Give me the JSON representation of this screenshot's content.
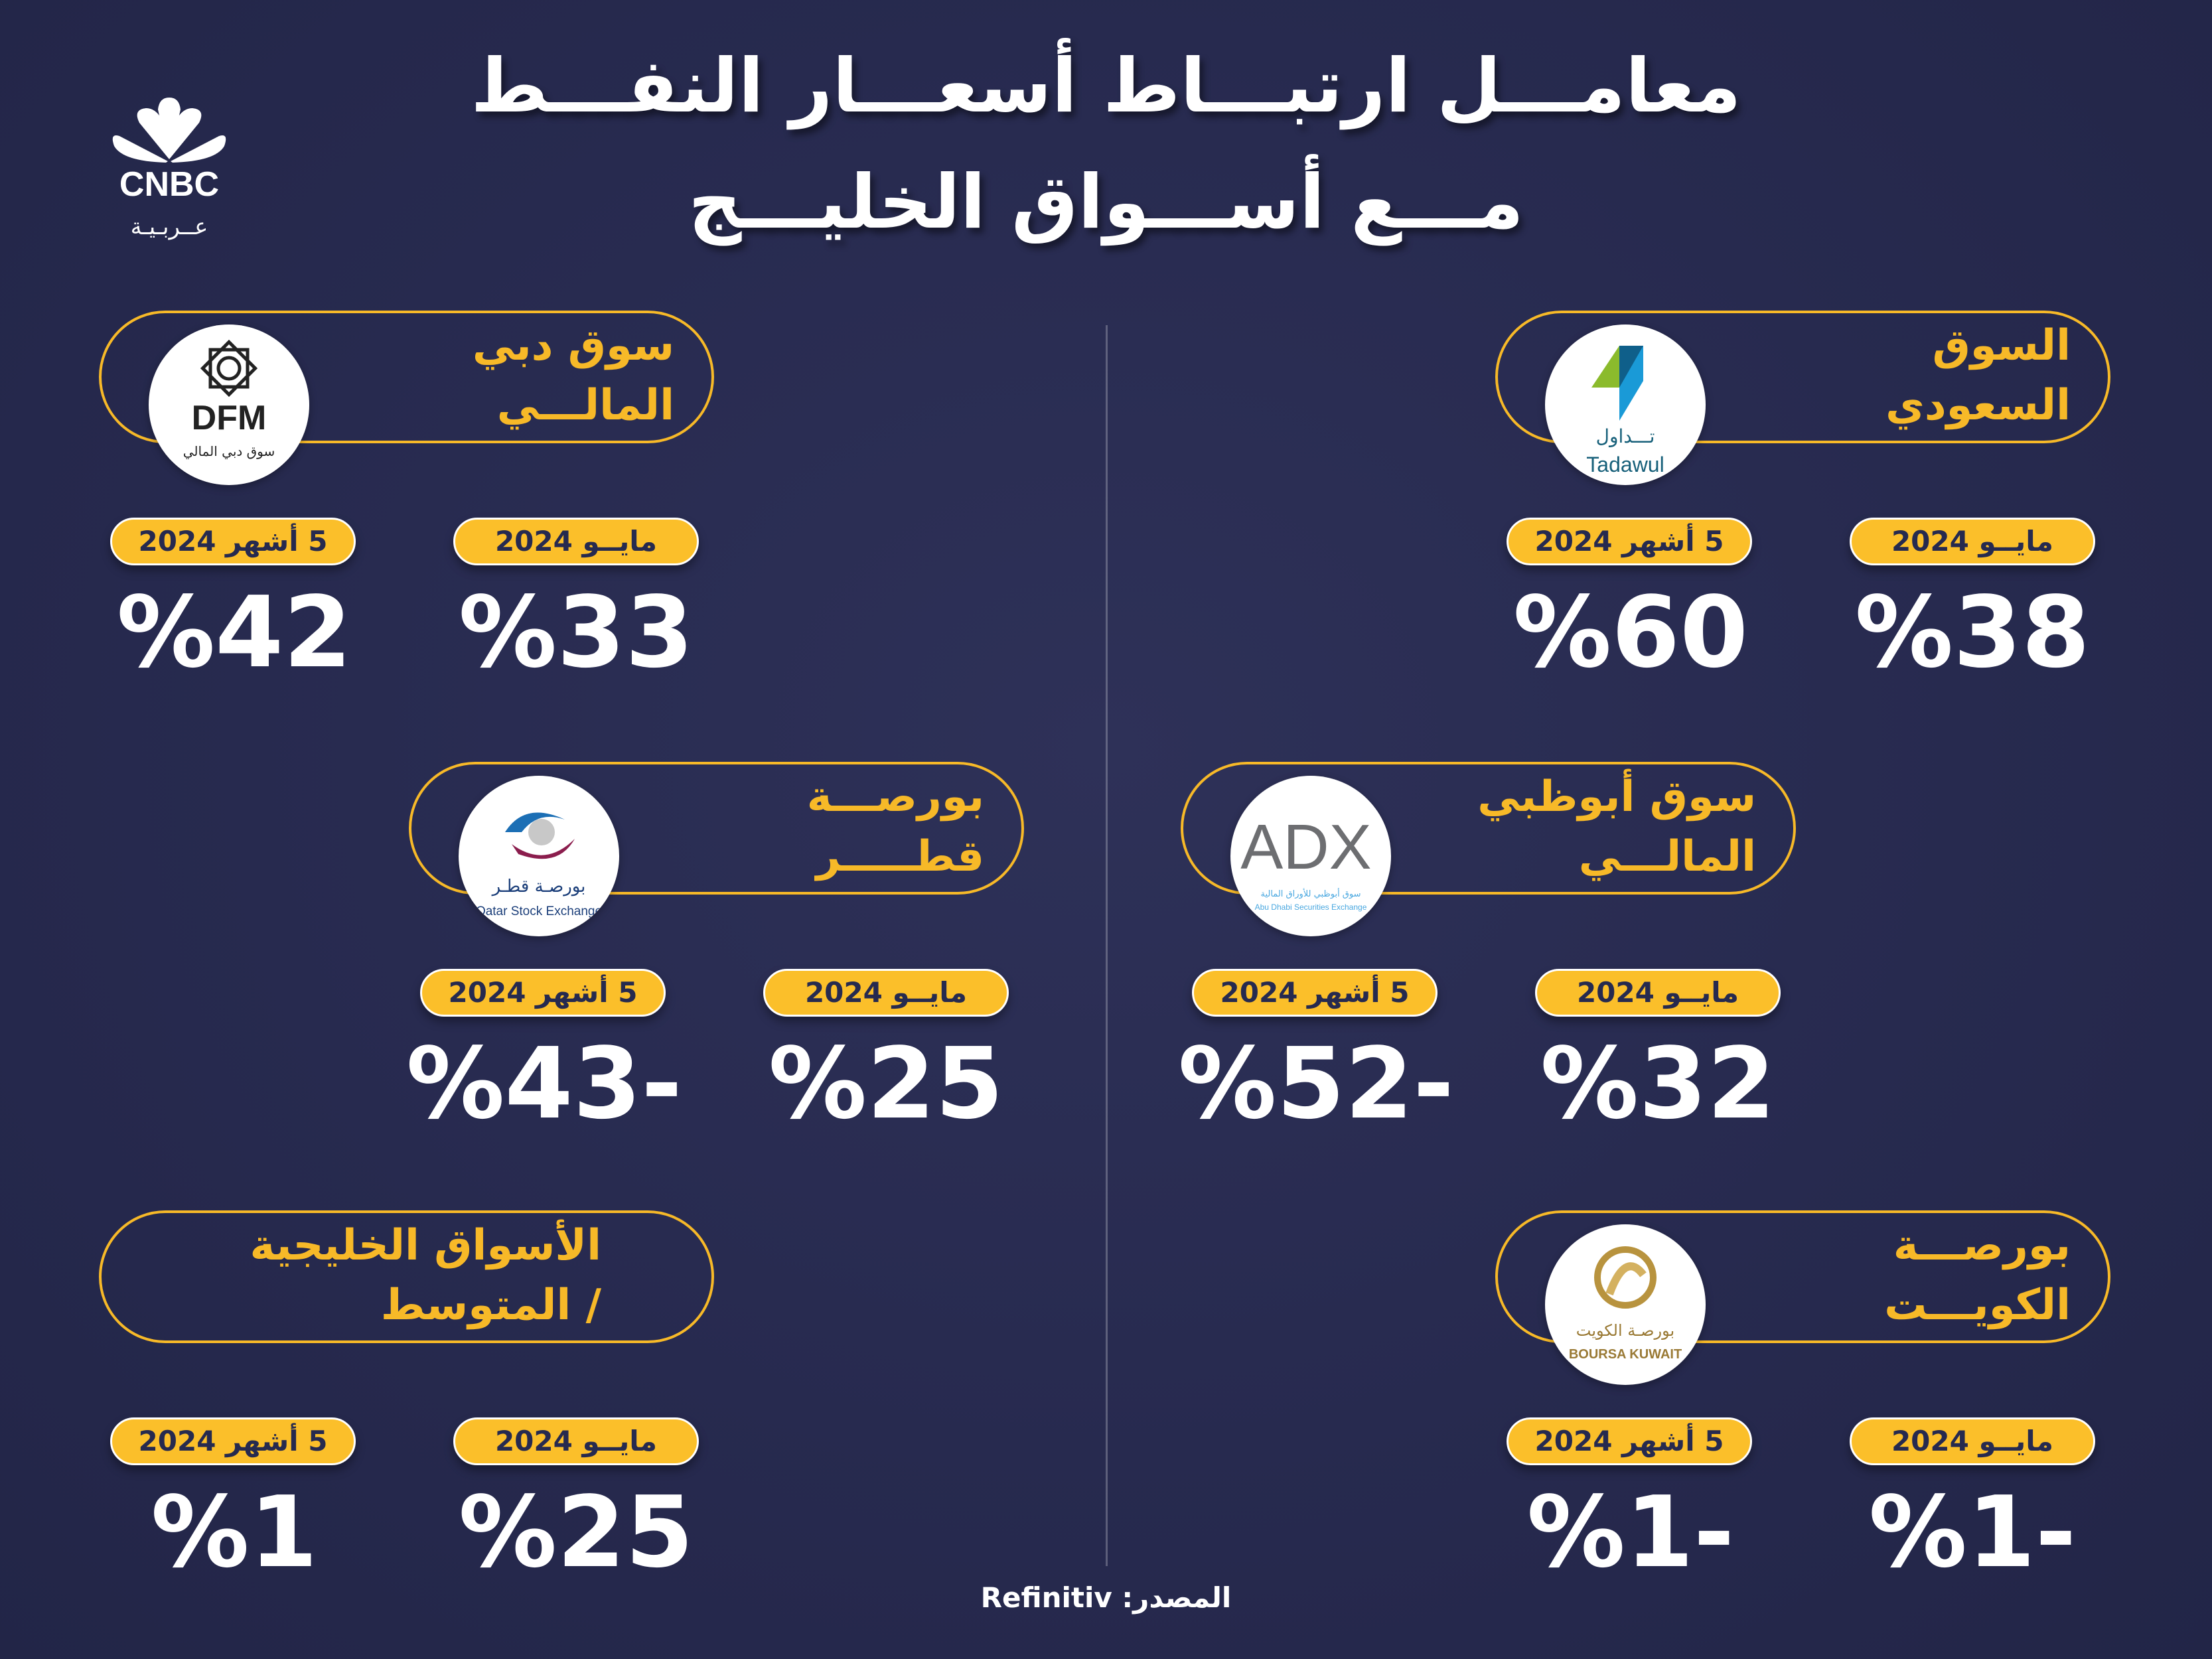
{
  "header": {
    "title_line1": "معامـــل ارتبـــاط أسعـــار النفـــط",
    "title_line2": "مـــع أســـواق الخليـــج",
    "logo": {
      "brand": "CNBC",
      "sub": "عــربـيـة"
    }
  },
  "colors": {
    "background": "#272a4f",
    "accent": "#f7b928",
    "pill": "#fbbf2a",
    "text": "#ffffff"
  },
  "labels": {
    "may": "مايــو 2024",
    "five_months": "5 أشهر 2024"
  },
  "markets": [
    {
      "id": "saudi",
      "title": [
        "السوق",
        "السعودي"
      ],
      "logo": "tadawul",
      "logo_text": [
        "تـــداول",
        "Tadawul"
      ],
      "may": "%38",
      "five_months": "%60"
    },
    {
      "id": "dubai",
      "title": [
        "سوق دبي",
        "المالـــي"
      ],
      "logo": "dfm",
      "logo_text": [
        "DFM",
        "سوق دبي المالي"
      ],
      "may": "%33",
      "five_months": "%42"
    },
    {
      "id": "abudhabi",
      "title": [
        "سوق أبوظبي",
        "المالـــي"
      ],
      "logo": "adx",
      "logo_text": [
        "ADX",
        "سوق أبوظبي للأوراق المالية",
        "Abu Dhabi Securities Exchange"
      ],
      "may": "%32",
      "five_months": "%52-"
    },
    {
      "id": "qatar",
      "title": [
        "بورصـــة",
        "قطـــــر"
      ],
      "logo": "qse",
      "logo_text": [
        "بورصـة قطـر",
        "Qatar Stock Exchange"
      ],
      "may": "%25",
      "five_months": "%43-"
    },
    {
      "id": "kuwait",
      "title": [
        "بورصـــة",
        "الكويـــت"
      ],
      "logo": "boursa-kuwait",
      "logo_text": [
        "بورصـة الكويت",
        "BOURSA KUWAIT"
      ],
      "may": "%1-",
      "five_months": "%1-"
    },
    {
      "id": "gulf-average",
      "title": [
        "الأسواق الخليجية",
        "/ المتوسط"
      ],
      "logo": null,
      "may": "%25",
      "five_months": "%1"
    }
  ],
  "source": "المصدر: Refinitiv"
}
